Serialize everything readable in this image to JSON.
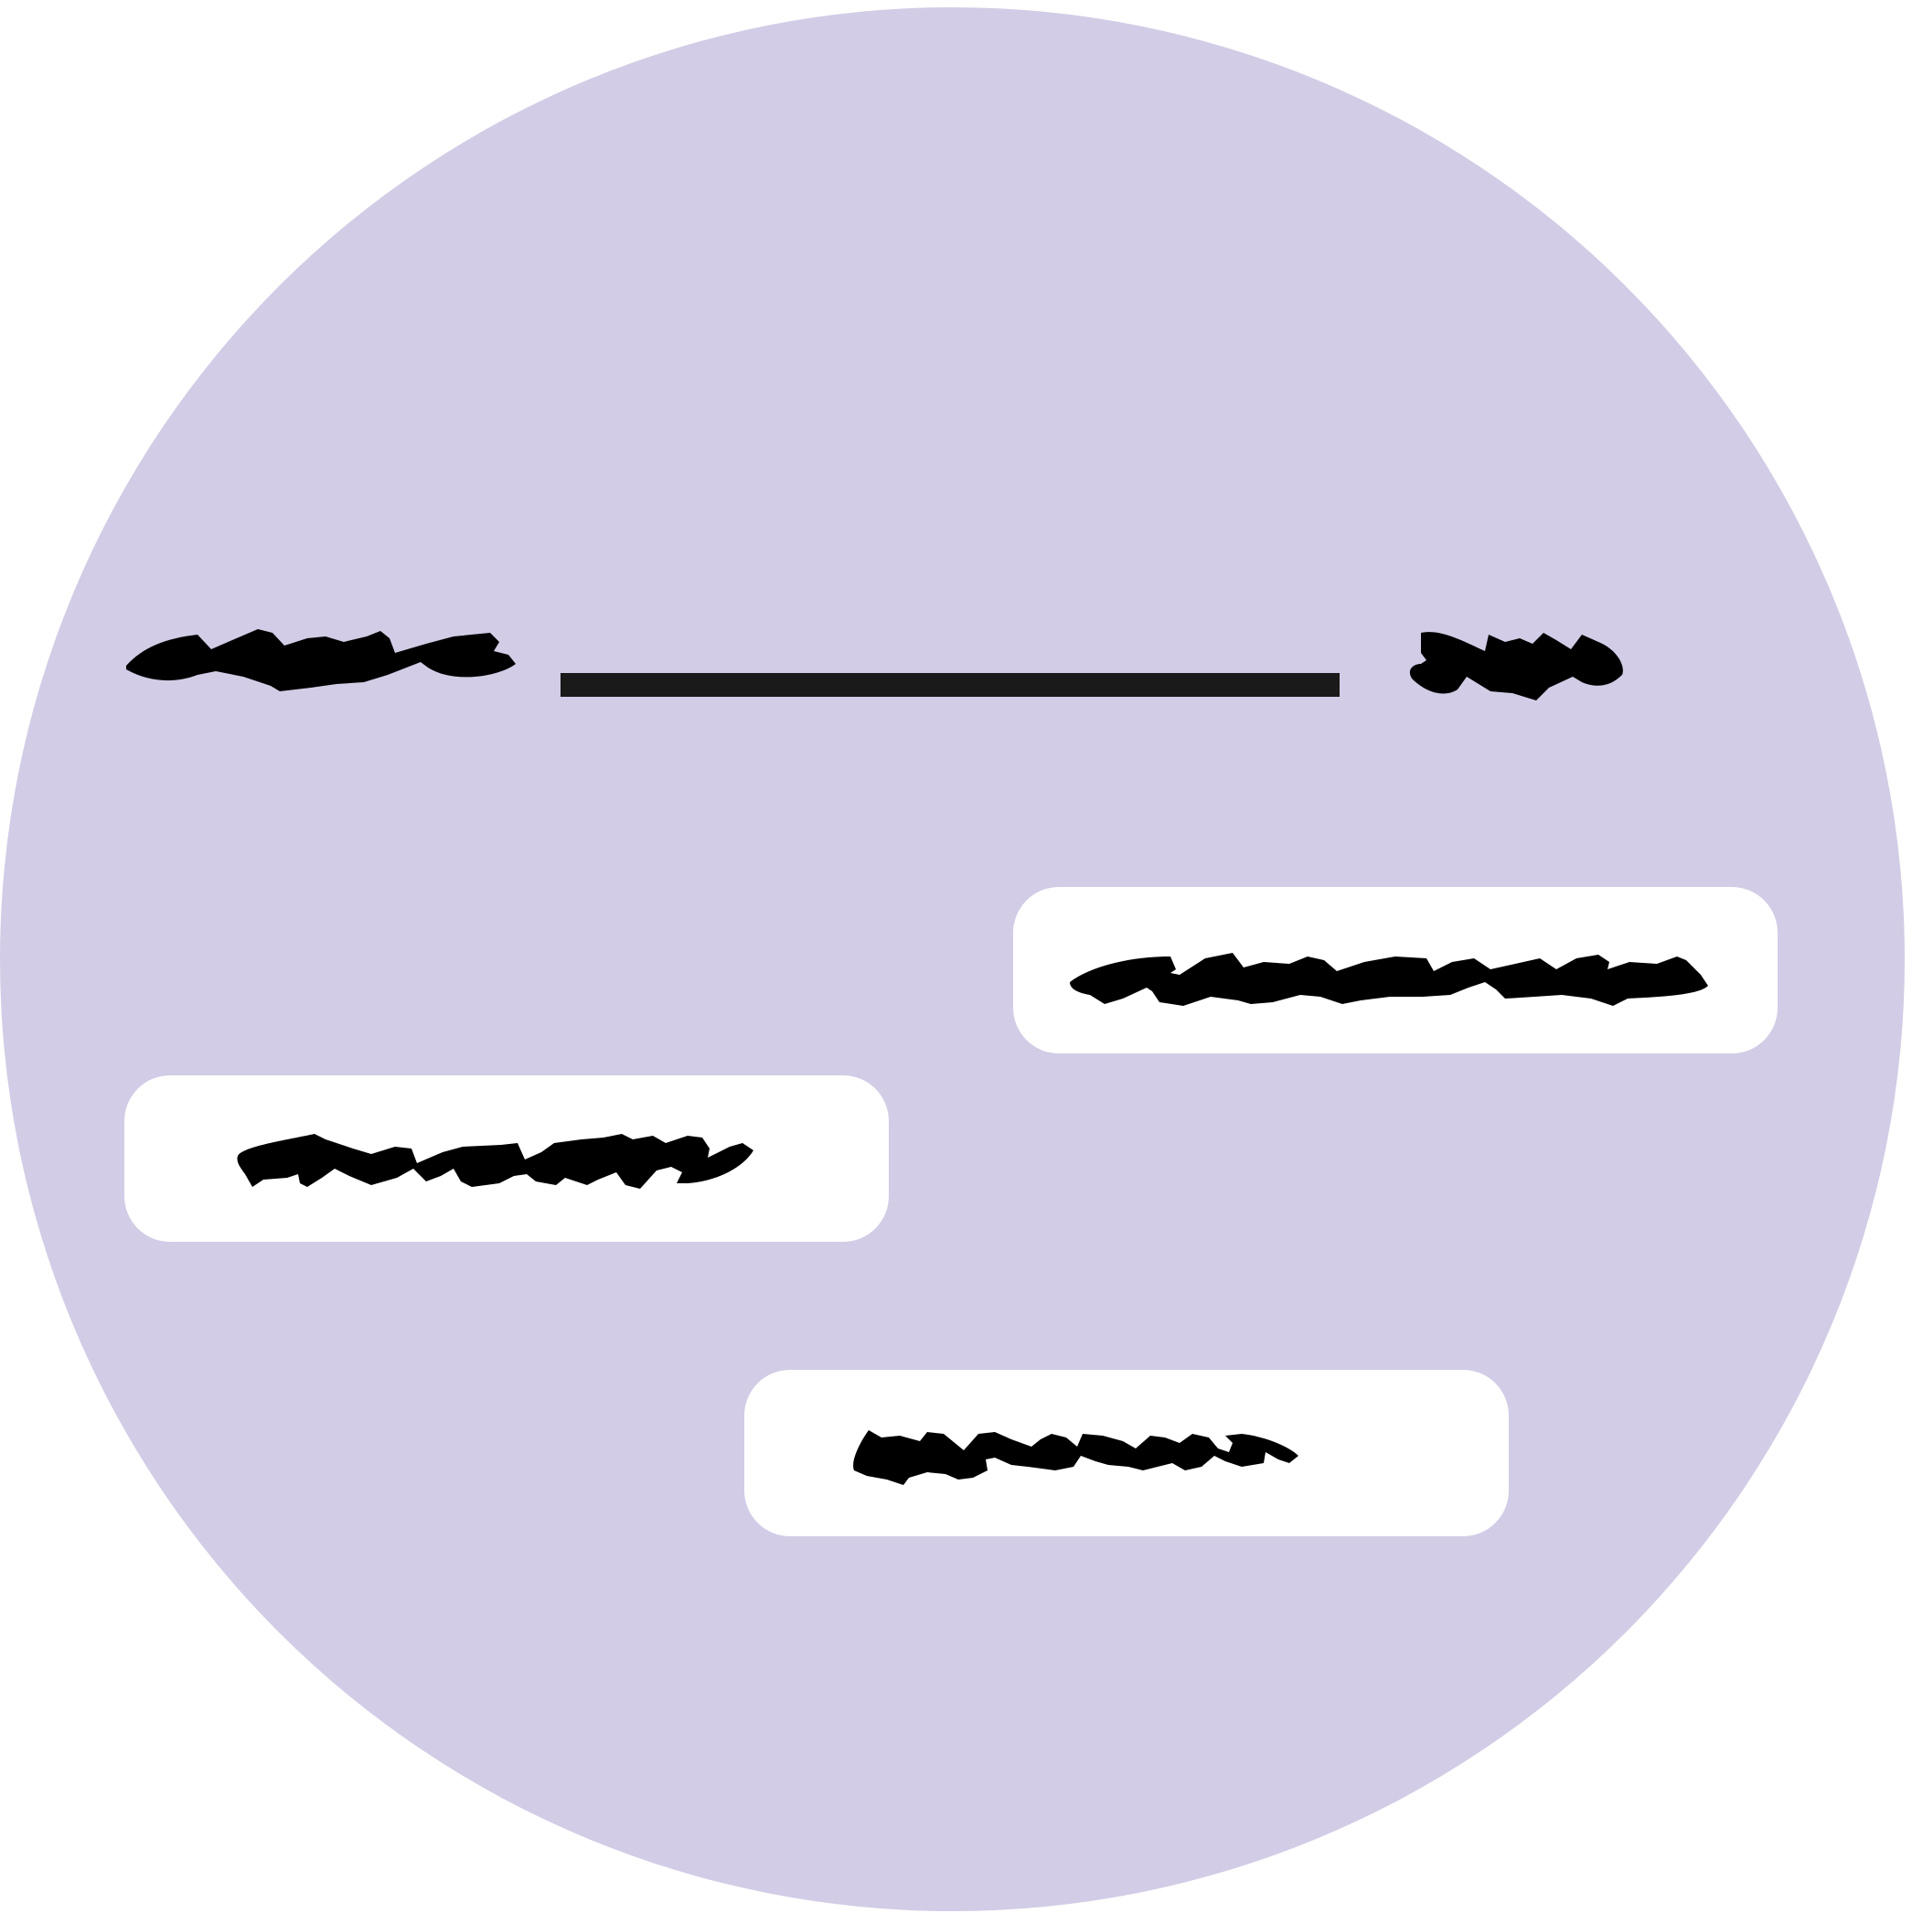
{
  "colors": {
    "disc": "#d2cce6",
    "chip": "#ffffff",
    "ink": "#000000",
    "blank_line": "#1a1a1a"
  },
  "icons": {
    "prompt_before": "redacted-scribble-icon",
    "prompt_after": "redacted-scribble-icon",
    "chip_labels": "redacted-scribble-icon"
  }
}
